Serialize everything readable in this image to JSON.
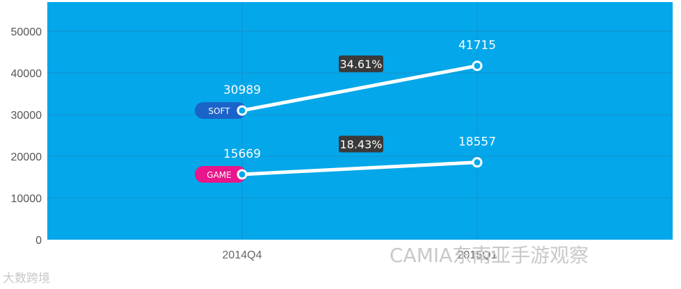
{
  "chart_data": {
    "type": "line",
    "categories": [
      "2014Q4",
      "2015Q1"
    ],
    "ylim": [
      0,
      57000
    ],
    "yticks": [
      0,
      10000,
      20000,
      30000,
      40000,
      50000
    ],
    "grid": true,
    "series": [
      {
        "name": "SOFT",
        "values": [
          30989,
          41715
        ],
        "change_label": "34.61%",
        "tag_color": "#1a63c8"
      },
      {
        "name": "GAME",
        "values": [
          15669,
          18557
        ],
        "change_label": "18.43%",
        "tag_color": "#e8168a"
      }
    ],
    "colors": {
      "background": "#03a7ea",
      "line": "#ffffff",
      "badge": "#3a3a3a"
    }
  },
  "watermarks": {
    "right": "CAMIA东南亚手游观察",
    "left": "大数跨境"
  }
}
